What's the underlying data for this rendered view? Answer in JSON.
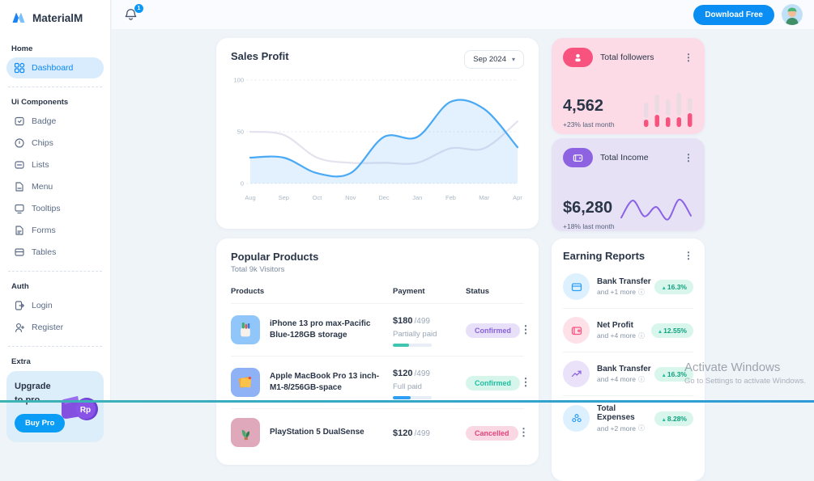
{
  "app": {
    "name": "MaterialM"
  },
  "topbar": {
    "notification_count": "1",
    "download_button": "Download Free"
  },
  "sidebar": {
    "sections": [
      {
        "label": "Home",
        "items": [
          {
            "label": "Dashboard",
            "icon": "dashboard-icon",
            "active": true
          }
        ]
      },
      {
        "label": "Ui Components",
        "items": [
          {
            "label": "Badge",
            "icon": "badge-icon"
          },
          {
            "label": "Chips",
            "icon": "chips-icon"
          },
          {
            "label": "Lists",
            "icon": "lists-icon"
          },
          {
            "label": "Menu",
            "icon": "menu-icon"
          },
          {
            "label": "Tooltips",
            "icon": "tooltips-icon"
          },
          {
            "label": "Forms",
            "icon": "forms-icon"
          },
          {
            "label": "Tables",
            "icon": "tables-icon"
          }
        ]
      },
      {
        "label": "Auth",
        "items": [
          {
            "label": "Login",
            "icon": "login-icon"
          },
          {
            "label": "Register",
            "icon": "register-icon"
          }
        ]
      },
      {
        "label": "Extra",
        "items": []
      }
    ],
    "upgrade": {
      "title": "Upgrade to pro",
      "button": "Buy Pro",
      "coin_label": "Rp"
    }
  },
  "sales_profit": {
    "title": "Sales Profit",
    "period": "Sep 2024"
  },
  "stats": {
    "followers": {
      "title": "Total followers",
      "value": "4,562",
      "delta": "+23% last month",
      "accent": "#f8537e",
      "bg": "#fcdbe7"
    },
    "income": {
      "title": "Total Income",
      "value": "$6,280",
      "delta": "+18% last month",
      "accent": "#8d63e2",
      "bg": "#e7e1f6"
    }
  },
  "products": {
    "title": "Popular Products",
    "subtitle": "Total 9k Visitors",
    "columns": [
      "Products",
      "Payment",
      "Status"
    ],
    "rows": [
      {
        "name": "iPhone 13 pro max-Pacific Blue-128GB storage",
        "price": "$180",
        "of": "/499",
        "payment_status": "Partially paid",
        "progress_pct": 42,
        "progress_color": "#3ec6b0",
        "status": "Confirmed",
        "status_bg": "#e8e0f8",
        "status_color": "#8763da",
        "thumb": "pencil-cup-thumb",
        "thumb_bg": "#90c6f9"
      },
      {
        "name": "Apple MacBook Pro 13 inch-M1-8/256GB-space",
        "price": "$120",
        "of": "/499",
        "payment_status": "Full paid",
        "progress_pct": 45,
        "progress_color": "#2f9ef5",
        "status": "Confirmed",
        "status_bg": "#d6f6ec",
        "status_color": "#1fbe9e",
        "thumb": "sticky-notes-thumb",
        "thumb_bg": "#8fb2f7"
      },
      {
        "name": "PlayStation 5 DualSense",
        "price": "$120",
        "of": "/499",
        "payment_status": "",
        "progress_pct": 0,
        "progress_color": "#3ec6b0",
        "status": "Cancelled",
        "status_bg": "#f9d8e3",
        "status_color": "#e0447c",
        "thumb": "plant-thumb",
        "thumb_bg": "#dfa9bb"
      }
    ]
  },
  "earning": {
    "title": "Earning Reports",
    "rows": [
      {
        "title": "Bank Transfer",
        "sub": "and +1 more",
        "delta": "16.3%",
        "delta_dir": "up",
        "icon": "credit-card-icon",
        "icon_bg": "#ddf0fd",
        "icon_color": "#2f9ef5"
      },
      {
        "title": "Net Profit",
        "sub": "and +4 more",
        "delta": "12.55%",
        "delta_dir": "up",
        "icon": "wallet-icon",
        "icon_bg": "#fde0e8",
        "icon_color": "#f8537e"
      },
      {
        "title": "Bank Transfer",
        "sub": "and +4 more",
        "delta": "16.3%",
        "delta_dir": "up",
        "icon": "trending-up-icon",
        "icon_bg": "#eae2f9",
        "icon_color": "#8d63e2"
      },
      {
        "title": "Total Expenses",
        "sub": "and +2 more",
        "delta": "8.28%",
        "delta_dir": "up",
        "icon": "cluster-icon",
        "icon_bg": "#ddf0fd",
        "icon_color": "#2f9ef5"
      }
    ]
  },
  "watermark": {
    "line1": "Activate Windows",
    "line2": "Go to Settings to activate Windows."
  },
  "colors": {
    "primary": "#0b98f5",
    "chart_blue": "#49a9f5",
    "pink": "#f8537e",
    "purple": "#8d63e2",
    "teal": "#1fbe9e"
  },
  "chart_data": {
    "sales_profit": {
      "type": "area",
      "x": [
        "Aug",
        "Sep",
        "Oct",
        "Nov",
        "Dec",
        "Jan",
        "Feb",
        "Mar",
        "Apr"
      ],
      "ylim": [
        0,
        100
      ],
      "yticks": [
        0,
        50,
        100
      ],
      "grid": "dotted-horizontal",
      "legend": "none",
      "series": [
        {
          "name": "previous",
          "color": "#e4e2ef",
          "fill": "none",
          "values": [
            50,
            47,
            25,
            20,
            20,
            20,
            34,
            34,
            60
          ]
        },
        {
          "name": "current",
          "color": "#49a9f5",
          "fill": "rgba(73,169,245,0.16)",
          "values": [
            25,
            25,
            10,
            10,
            45,
            45,
            79,
            72,
            35
          ]
        }
      ]
    },
    "followers_spark": {
      "type": "bar",
      "bars": [
        {
          "total": 30,
          "filled": 9
        },
        {
          "total": 40,
          "filled": 15
        },
        {
          "total": 34,
          "filled": 12
        },
        {
          "total": 42,
          "filled": 12
        },
        {
          "total": 36,
          "filled": 17
        }
      ],
      "colors": {
        "filled": "#f8537e",
        "rest": "#eadbe2"
      }
    },
    "income_spark": {
      "type": "line",
      "color": "#8a63e6",
      "values": [
        22,
        75,
        26,
        55,
        16,
        78,
        28
      ]
    }
  }
}
